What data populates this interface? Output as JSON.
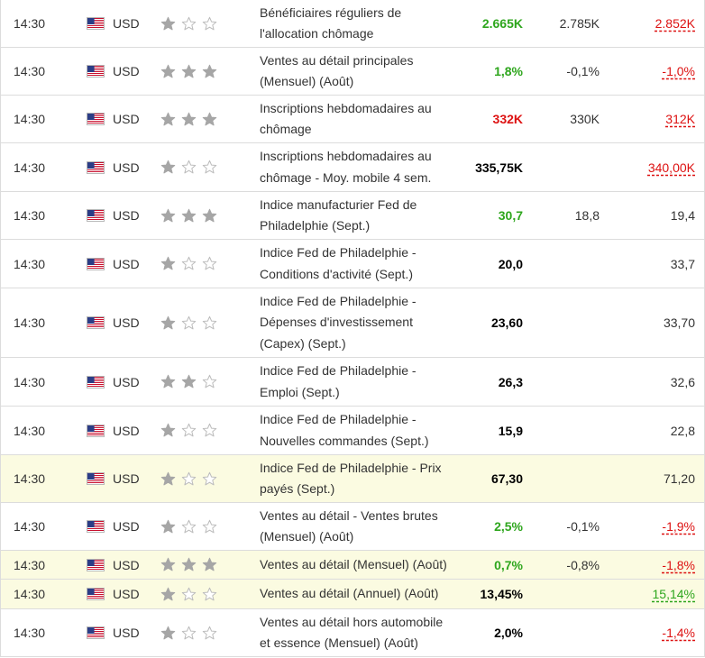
{
  "colors": {
    "positive": "#2ea61d",
    "negative": "#dd1111",
    "highlight_row": "#fbfbe1",
    "star_filled": "#a6a6a6",
    "star_empty": "#bdbdbd"
  },
  "flag_icon": "us-flag-icon",
  "rows": [
    {
      "time": "14:30",
      "currency": "USD",
      "importance": 1,
      "event": "Bénéficiaires réguliers de l'allocation chômage",
      "actual": "2.665K",
      "actual_color": "green",
      "forecast": "2.785K",
      "previous": "2.852K",
      "previous_color": "red",
      "highlight": false
    },
    {
      "time": "14:30",
      "currency": "USD",
      "importance": 3,
      "event": "Ventes au détail principales (Mensuel) (Août)",
      "actual": "1,8%",
      "actual_color": "green",
      "forecast": "-0,1%",
      "previous": "-1,0%",
      "previous_color": "red",
      "highlight": false
    },
    {
      "time": "14:30",
      "currency": "USD",
      "importance": 3,
      "event": "Inscriptions hebdomadaires au chômage",
      "actual": "332K",
      "actual_color": "red",
      "forecast": "330K",
      "previous": "312K",
      "previous_color": "red",
      "highlight": false
    },
    {
      "time": "14:30",
      "currency": "USD",
      "importance": 1,
      "event": "Inscriptions hebdomadaires au chômage - Moy. mobile 4 sem.",
      "actual": "335,75K",
      "actual_color": "black",
      "forecast": "",
      "previous": "340,00K",
      "previous_color": "red",
      "highlight": false
    },
    {
      "time": "14:30",
      "currency": "USD",
      "importance": 3,
      "event": "Indice manufacturier Fed de Philadelphie (Sept.)",
      "actual": "30,7",
      "actual_color": "green",
      "forecast": "18,8",
      "previous": "19,4",
      "previous_color": "black",
      "highlight": false
    },
    {
      "time": "14:30",
      "currency": "USD",
      "importance": 1,
      "event": "Indice Fed de Philadelphie - Conditions d'activité (Sept.)",
      "actual": "20,0",
      "actual_color": "black",
      "forecast": "",
      "previous": "33,7",
      "previous_color": "black",
      "highlight": false
    },
    {
      "time": "14:30",
      "currency": "USD",
      "importance": 1,
      "event": "Indice Fed de Philadelphie - Dépenses d'investissement (Capex) (Sept.)",
      "actual": "23,60",
      "actual_color": "black",
      "forecast": "",
      "previous": "33,70",
      "previous_color": "black",
      "highlight": false
    },
    {
      "time": "14:30",
      "currency": "USD",
      "importance": 2,
      "event": "Indice Fed de Philadelphie - Emploi (Sept.)",
      "actual": "26,3",
      "actual_color": "black",
      "forecast": "",
      "previous": "32,6",
      "previous_color": "black",
      "highlight": false
    },
    {
      "time": "14:30",
      "currency": "USD",
      "importance": 1,
      "event": "Indice Fed de Philadelphie - Nouvelles commandes (Sept.)",
      "actual": "15,9",
      "actual_color": "black",
      "forecast": "",
      "previous": "22,8",
      "previous_color": "black",
      "highlight": false
    },
    {
      "time": "14:30",
      "currency": "USD",
      "importance": 1,
      "event": "Indice Fed de Philadelphie - Prix payés (Sept.)",
      "actual": "67,30",
      "actual_color": "black",
      "forecast": "",
      "previous": "71,20",
      "previous_color": "black",
      "highlight": true
    },
    {
      "time": "14:30",
      "currency": "USD",
      "importance": 1,
      "event": "Ventes au détail - Ventes brutes (Mensuel) (Août)",
      "actual": "2,5%",
      "actual_color": "green",
      "forecast": "-0,1%",
      "previous": "-1,9%",
      "previous_color": "red",
      "highlight": false
    },
    {
      "time": "14:30",
      "currency": "USD",
      "importance": 3,
      "event": "Ventes au détail (Mensuel) (Août)",
      "actual": "0,7%",
      "actual_color": "green",
      "forecast": "-0,8%",
      "previous": "-1,8%",
      "previous_color": "red",
      "highlight": true
    },
    {
      "time": "14:30",
      "currency": "USD",
      "importance": 1,
      "event": "Ventes au détail (Annuel) (Août)",
      "actual": "13,45%",
      "actual_color": "black",
      "forecast": "",
      "previous": "15,14%",
      "previous_color": "green",
      "highlight": true
    },
    {
      "time": "14:30",
      "currency": "USD",
      "importance": 1,
      "event": "Ventes au détail hors automobile et essence (Mensuel) (Août)",
      "actual": "2,0%",
      "actual_color": "black",
      "forecast": "",
      "previous": "-1,4%",
      "previous_color": "red",
      "highlight": false
    }
  ]
}
